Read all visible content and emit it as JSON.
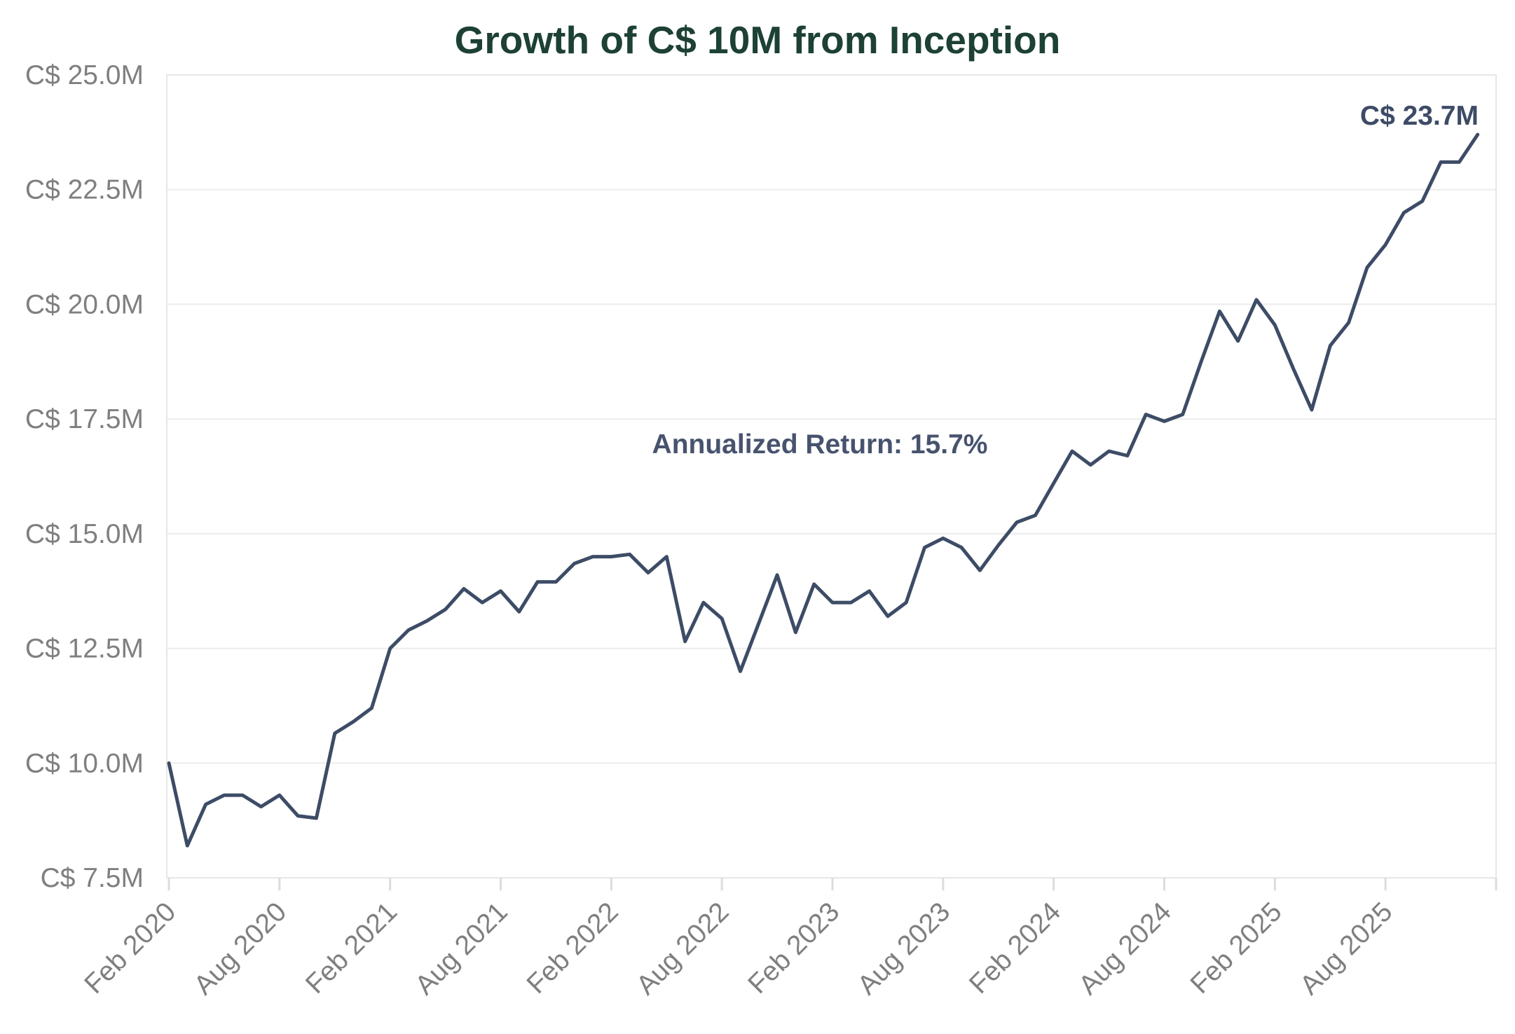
{
  "title": "Growth of C$ 10M from Inception",
  "colors": {
    "title": "#1d4134",
    "line": "#3d4c66",
    "annotation": "#47536e",
    "end_label": "#3d4b66",
    "tick_label": "#7f7f7f",
    "gridline": "#ececec",
    "spine": "#e7e7e7",
    "background": "#ffffff"
  },
  "chart_data": {
    "type": "line",
    "title": "Growth of C$ 10M from Inception",
    "annotation": "Annualized Return: 15.7%",
    "annualized_return_pct": 15.7,
    "end_value_label": "C$ 23.7M",
    "final_value_millions": 23.7,
    "initial_value_millions": 10.0,
    "currency_prefix": "C$",
    "ylabel": "",
    "xlabel": "",
    "ylim": [
      7.5,
      25.0
    ],
    "y_ticks": [
      {
        "label": "C$ 25.0M",
        "value": 25.0
      },
      {
        "label": "C$ 22.5M",
        "value": 22.5
      },
      {
        "label": "C$ 20.0M",
        "value": 20.0
      },
      {
        "label": "C$ 17.5M",
        "value": 17.5
      },
      {
        "label": "C$ 15.0M",
        "value": 15.0
      },
      {
        "label": "C$ 12.5M",
        "value": 12.5
      },
      {
        "label": "C$ 10.0M",
        "value": 10.0
      },
      {
        "label": "C$ 7.5M",
        "value": 7.5
      }
    ],
    "x_tick_labels": [
      "Feb 2020",
      "Aug 2020",
      "Feb 2021",
      "Aug 2021",
      "Feb 2022",
      "Aug 2022",
      "Feb 2023",
      "Aug 2023",
      "Feb 2024",
      "Aug 2024",
      "Feb 2025",
      "Aug 2025"
    ],
    "x_tick_interval_months": 6,
    "x_range_months": 72,
    "start_month": "Feb 2020",
    "legend": "none",
    "grid": "horizontal",
    "values": [
      10.0,
      8.2,
      9.1,
      9.3,
      9.3,
      9.05,
      9.3,
      8.85,
      8.8,
      10.65,
      10.9,
      11.2,
      12.5,
      12.9,
      13.1,
      13.35,
      13.8,
      13.5,
      13.75,
      13.3,
      13.95,
      13.95,
      14.35,
      14.5,
      14.5,
      14.55,
      14.15,
      14.5,
      12.65,
      13.5,
      13.15,
      12.0,
      13.05,
      14.1,
      12.85,
      13.9,
      13.5,
      13.5,
      13.75,
      13.2,
      13.5,
      14.7,
      14.9,
      14.7,
      14.2,
      14.75,
      15.25,
      15.4,
      16.1,
      16.8,
      16.5,
      16.8,
      16.7,
      17.6,
      17.45,
      17.6,
      18.75,
      19.85,
      19.2,
      20.1,
      19.55,
      18.6,
      17.7,
      19.1,
      19.6,
      20.8,
      21.3,
      22.0,
      22.25,
      23.1,
      23.1,
      23.7
    ]
  }
}
